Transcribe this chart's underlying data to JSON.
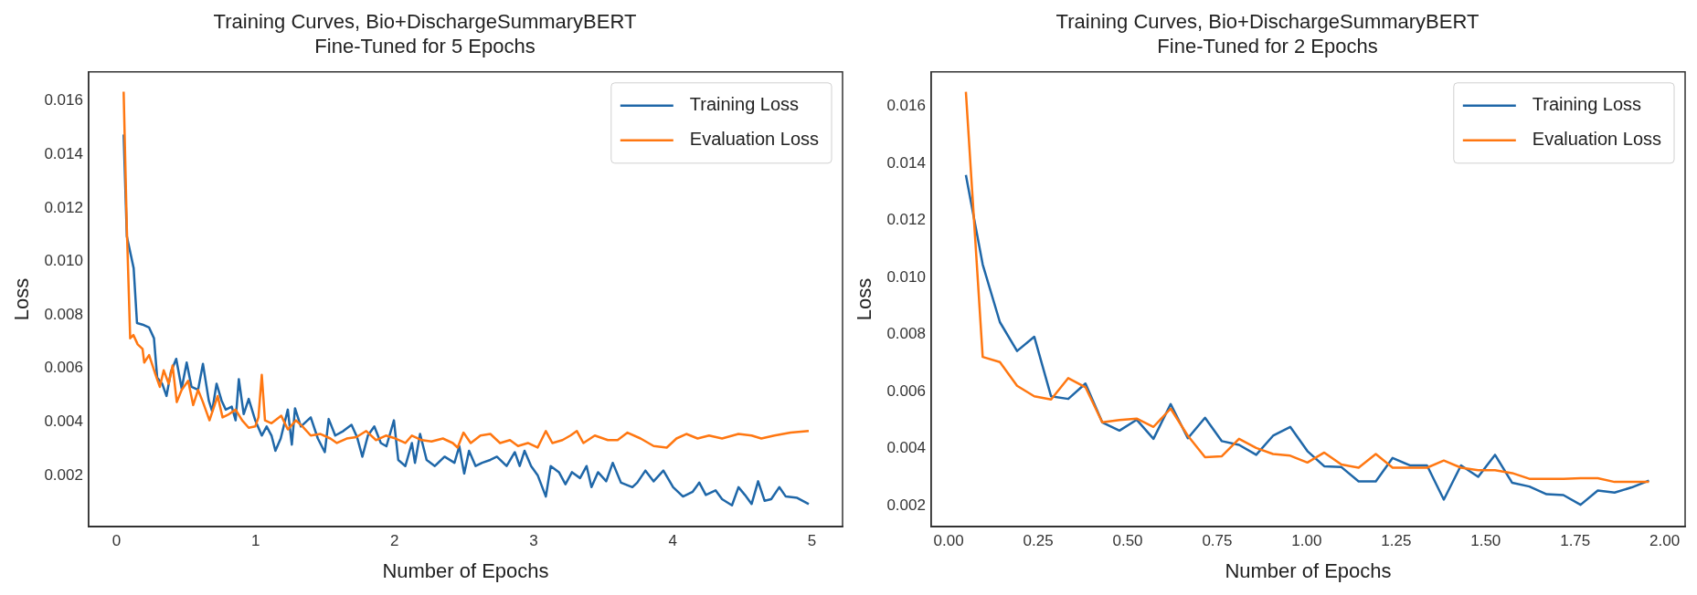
{
  "chart_data": [
    {
      "type": "line",
      "title": "Training Curves, Bio+DischargeSummaryBERT\nFine-Tuned for 5 Epochs",
      "xlabel": "Number of Epochs",
      "ylabel": "Loss",
      "xlim": [
        -0.2,
        5.22
      ],
      "xticks": [
        0,
        1,
        2,
        3,
        4,
        5
      ],
      "ylim": [
        8e-05,
        0.01709
      ],
      "yticks": [
        0.002,
        0.004,
        0.006,
        0.008,
        {
          "value": 0.01,
          "label": "0.010"
        },
        0.012,
        0.014,
        0.016
      ],
      "grid": false,
      "legend": "top right",
      "series": [
        {
          "name": "Training Loss",
          "color": "#1f67a8",
          "x": [
            0.052,
            0.075,
            0.124,
            0.148,
            0.188,
            0.235,
            0.27,
            0.293,
            0.329,
            0.36,
            0.392,
            0.43,
            0.469,
            0.505,
            0.54,
            0.587,
            0.622,
            0.664,
            0.688,
            0.72,
            0.756,
            0.786,
            0.829,
            0.857,
            0.88,
            0.915,
            0.951,
            0.998,
            1.045,
            1.08,
            1.115,
            1.143,
            1.181,
            1.232,
            1.261,
            1.284,
            1.326,
            1.397,
            1.448,
            1.498,
            1.526,
            1.573,
            1.631,
            1.69,
            1.73,
            1.768,
            1.808,
            1.854,
            1.901,
            1.941,
            1.995,
            2.026,
            2.077,
            2.124,
            2.146,
            2.183,
            2.23,
            2.289,
            2.359,
            2.43,
            2.465,
            2.5,
            2.535,
            2.582,
            2.629,
            2.688,
            2.735,
            2.805,
            2.864,
            2.899,
            2.934,
            2.981,
            3.028,
            3.087,
            3.122,
            3.181,
            3.228,
            3.275,
            3.333,
            3.38,
            3.415,
            3.462,
            3.521,
            3.568,
            3.627,
            3.709,
            3.744,
            3.803,
            3.862,
            3.932,
            4.002,
            4.073,
            4.143,
            4.19,
            4.237,
            4.307,
            4.354,
            4.425,
            4.472,
            4.518,
            4.566,
            4.613,
            4.66,
            4.707,
            4.765,
            4.812,
            4.894,
            4.977
          ],
          "values": [
            0.01475,
            0.01094,
            0.00975,
            0.0077,
            0.00764,
            0.00753,
            0.00713,
            0.00566,
            0.00543,
            0.00497,
            0.00588,
            0.00636,
            0.00525,
            0.00622,
            0.00531,
            0.0052,
            0.00617,
            0.0048,
            0.0044,
            0.00543,
            0.0048,
            0.00446,
            0.00457,
            0.00406,
            0.0056,
            0.00429,
            0.00486,
            0.00406,
            0.00349,
            0.00383,
            0.00349,
            0.00292,
            0.00338,
            0.00446,
            0.00315,
            0.00451,
            0.00383,
            0.00417,
            0.00338,
            0.00287,
            0.00411,
            0.00349,
            0.00366,
            0.00389,
            0.00343,
            0.0027,
            0.00349,
            0.00383,
            0.00321,
            0.00309,
            0.00406,
            0.00258,
            0.00235,
            0.00321,
            0.00247,
            0.00355,
            0.00258,
            0.00235,
            0.0027,
            0.00247,
            0.00309,
            0.00207,
            0.00292,
            0.00235,
            0.00247,
            0.00258,
            0.0027,
            0.00235,
            0.00287,
            0.00235,
            0.00292,
            0.00235,
            0.00201,
            0.00121,
            0.00235,
            0.00212,
            0.00167,
            0.00212,
            0.0019,
            0.00235,
            0.00156,
            0.00212,
            0.00178,
            0.00247,
            0.00173,
            0.00156,
            0.00173,
            0.00218,
            0.00178,
            0.00218,
            0.00156,
            0.00121,
            0.00139,
            0.00173,
            0.00127,
            0.00144,
            0.00111,
            0.00088,
            0.00156,
            0.00127,
            0.00093,
            0.00178,
            0.00105,
            0.00111,
            0.00156,
            0.00121,
            0.00116,
            0.00093
          ]
        },
        {
          "name": "Evaluation Loss",
          "color": "#ff7711",
          "x": [
            0.052,
            0.075,
            0.099,
            0.122,
            0.153,
            0.188,
            0.2,
            0.235,
            0.282,
            0.312,
            0.34,
            0.376,
            0.404,
            0.434,
            0.469,
            0.516,
            0.552,
            0.587,
            0.622,
            0.669,
            0.728,
            0.763,
            0.81,
            0.857,
            0.904,
            0.951,
            0.998,
            1.021,
            1.045,
            1.068,
            1.115,
            1.185,
            1.232,
            1.291,
            1.338,
            1.397,
            1.467,
            1.538,
            1.585,
            1.655,
            1.725,
            1.796,
            1.866,
            1.937,
            2.007,
            2.077,
            2.124,
            2.195,
            2.265,
            2.347,
            2.418,
            2.453,
            2.495,
            2.547,
            2.617,
            2.688,
            2.758,
            2.829,
            2.887,
            2.958,
            3.028,
            3.087,
            3.134,
            3.206,
            3.264,
            3.31,
            3.357,
            3.439,
            3.533,
            3.603,
            3.674,
            3.768,
            3.862,
            3.956,
            4.026,
            4.097,
            4.178,
            4.26,
            4.354,
            4.472,
            4.566,
            4.636,
            4.73,
            4.847,
            4.977
          ],
          "values": [
            0.01635,
            0.01123,
            0.00713,
            0.00725,
            0.0069,
            0.00673,
            0.00622,
            0.0065,
            0.00576,
            0.00531,
            0.00593,
            0.00543,
            0.00611,
            0.00474,
            0.0052,
            0.00554,
            0.00463,
            0.0052,
            0.00474,
            0.00406,
            0.00497,
            0.00417,
            0.00429,
            0.00446,
            0.00406,
            0.00378,
            0.00383,
            0.00417,
            0.00576,
            0.00406,
            0.00395,
            0.00423,
            0.00372,
            0.00406,
            0.00383,
            0.00349,
            0.00355,
            0.00338,
            0.00321,
            0.00338,
            0.00343,
            0.00366,
            0.00332,
            0.00349,
            0.00338,
            0.00321,
            0.00349,
            0.00332,
            0.00327,
            0.00338,
            0.00321,
            0.00304,
            0.0036,
            0.00321,
            0.00349,
            0.00355,
            0.00321,
            0.00332,
            0.0031,
            0.00321,
            0.00304,
            0.00366,
            0.00321,
            0.00332,
            0.00349,
            0.00366,
            0.00321,
            0.00349,
            0.00332,
            0.00332,
            0.0036,
            0.00338,
            0.0031,
            0.00304,
            0.00338,
            0.00355,
            0.00338,
            0.00349,
            0.00338,
            0.00355,
            0.00349,
            0.00338,
            0.00349,
            0.0036,
            0.00366
          ]
        }
      ]
    },
    {
      "type": "line",
      "title": "Training Curves, Bio+DischargeSummaryBERT\nFine-Tuned for 2 Epochs",
      "xlabel": "Number of Epochs",
      "ylabel": "Loss",
      "xlim": [
        -0.049,
        2.057
      ],
      "xticks": [
        {
          "value": 0,
          "label": "0.00"
        },
        {
          "value": 0.25,
          "label": "0.25"
        },
        {
          "value": 0.5,
          "label": "0.50"
        },
        {
          "value": 0.75,
          "label": "0.75"
        },
        {
          "value": 1,
          "label": "1.00"
        },
        {
          "value": 1.25,
          "label": "1.25"
        },
        {
          "value": 1.5,
          "label": "1.50"
        },
        {
          "value": 1.75,
          "label": "1.75"
        },
        {
          "value": 2,
          "label": "2.00"
        }
      ],
      "ylim": [
        0.00126,
        0.0172
      ],
      "yticks": [
        0.002,
        0.004,
        0.006,
        0.008,
        {
          "value": 0.01,
          "label": "0.010"
        },
        0.012,
        0.014,
        0.016
      ],
      "grid": false,
      "legend": "top right",
      "x": [
        0.048,
        0.095,
        0.143,
        0.191,
        0.239,
        0.286,
        0.334,
        0.382,
        0.429,
        0.477,
        0.525,
        0.572,
        0.62,
        0.668,
        0.716,
        0.763,
        0.811,
        0.859,
        0.906,
        0.954,
        1.002,
        1.049,
        1.097,
        1.145,
        1.193,
        1.24,
        1.288,
        1.336,
        1.383,
        1.431,
        1.479,
        1.526,
        1.574,
        1.622,
        1.67,
        1.717,
        1.765,
        1.813,
        1.86,
        1.908,
        1.956
      ],
      "series": [
        {
          "name": "Training Loss",
          "color": "#1f67a8",
          "values": [
            0.01359,
            0.01045,
            0.00843,
            0.00742,
            0.00792,
            0.00583,
            0.00574,
            0.00628,
            0.00492,
            0.00463,
            0.00501,
            0.00434,
            0.00556,
            0.00436,
            0.00508,
            0.00426,
            0.00413,
            0.00378,
            0.00445,
            0.00476,
            0.00391,
            0.00338,
            0.00335,
            0.00285,
            0.00285,
            0.00367,
            0.00341,
            0.00341,
            0.00221,
            0.00341,
            0.00301,
            0.00378,
            0.0028,
            0.00267,
            0.0024,
            0.00237,
            0.00203,
            0.00253,
            0.00246,
            0.00264,
            0.00288
          ]
        },
        {
          "name": "Evaluation Loss",
          "color": "#ff7711",
          "values": [
            0.0165,
            0.00721,
            0.00703,
            0.0062,
            0.00583,
            0.00572,
            0.00647,
            0.00615,
            0.00492,
            0.005,
            0.00505,
            0.00476,
            0.0054,
            0.00445,
            0.0037,
            0.00373,
            0.00434,
            0.00402,
            0.00381,
            0.00375,
            0.00351,
            0.00386,
            0.00344,
            0.00333,
            0.00381,
            0.00333,
            0.00333,
            0.00333,
            0.00358,
            0.00333,
            0.00324,
            0.00324,
            0.00314,
            0.00294,
            0.00294,
            0.00294,
            0.00296,
            0.00296,
            0.00283,
            0.00283,
            0.00283
          ]
        }
      ]
    }
  ]
}
